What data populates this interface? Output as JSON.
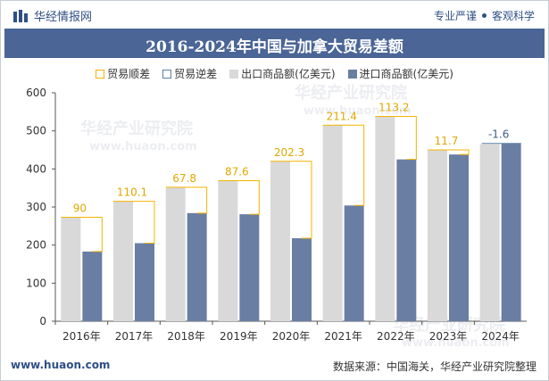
{
  "header": {
    "brand": "华经情报网",
    "slogan_left": "专业严谨",
    "slogan_right": "客观科学",
    "title": "2016-2024年中国与加拿大贸易差额"
  },
  "legend": {
    "surplus": "贸易顺差",
    "deficit": "贸易逆差",
    "export": "出口商品额(亿美元)",
    "import": "进口商品额(亿美元)"
  },
  "footer": {
    "site": "www.huaon.com",
    "source": "数据来源：中国海关，华经产业研究院整理"
  },
  "watermark": {
    "text": "华经产业研究院",
    "url": "www.huaon.com"
  },
  "colors": {
    "export": "#d9d9d9",
    "import": "#6a7ea4",
    "surplus": "#f5b400",
    "deficit": "#5a7fa6",
    "title_band": "#4a6596"
  },
  "chart_data": {
    "type": "bar",
    "title": "2016-2024年中国与加拿大贸易差额",
    "categories": [
      "2016年",
      "2017年",
      "2018年",
      "2019年",
      "2020年",
      "2021年",
      "2022年",
      "2023年",
      "2024年"
    ],
    "series": [
      {
        "name": "出口商品额(亿美元)",
        "values": [
          273,
          315,
          352,
          369,
          420,
          515,
          538,
          450,
          465
        ]
      },
      {
        "name": "进口商品额(亿美元)",
        "values": [
          183,
          205,
          284,
          281,
          218,
          304,
          425,
          438,
          467
        ]
      }
    ],
    "balance": {
      "values": [
        90,
        110.1,
        67.8,
        87.6,
        202.3,
        211.4,
        113.2,
        11.7,
        -1.6
      ],
      "labels": [
        "90",
        "110.1",
        "67.8",
        "87.6",
        "202.3",
        "211.4",
        "113.2",
        "11.7",
        "-1.6"
      ]
    },
    "ylim": [
      0,
      600
    ],
    "yticks": [
      0,
      100,
      200,
      300,
      400,
      500,
      600
    ],
    "xlabel": "",
    "ylabel": "",
    "grid": false,
    "legend_position": "top"
  }
}
